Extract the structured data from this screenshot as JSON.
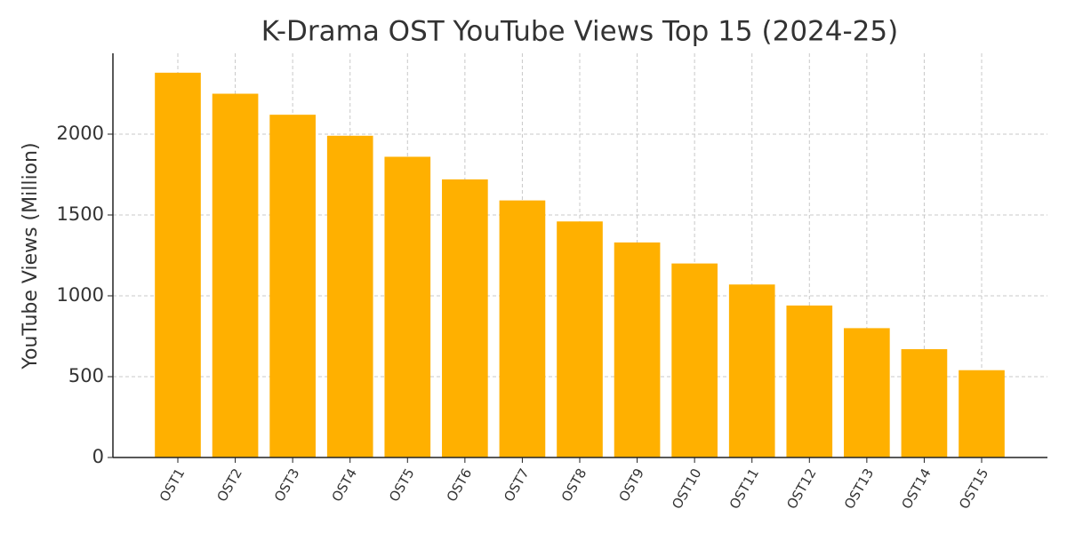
{
  "chart_data": {
    "type": "bar",
    "title": "K-Drama OST YouTube Views Top 15 (2024-25)",
    "y_label": "YouTube Views (Million)",
    "categories": [
      "OST1",
      "OST2",
      "OST3",
      "OST4",
      "OST5",
      "OST6",
      "OST7",
      "OST8",
      "OST9",
      "OST10",
      "OST11",
      "OST12",
      "OST13",
      "OST14",
      "OST15"
    ],
    "values": [
      2380,
      2250,
      2120,
      1990,
      1860,
      1720,
      1590,
      1460,
      1330,
      1200,
      1070,
      940,
      800,
      670,
      540
    ],
    "color": "#ffb000",
    "ylim": [
      0,
      2500
    ],
    "yticks": [
      0,
      500,
      1000,
      1500,
      2000
    ],
    "grid": true
  }
}
